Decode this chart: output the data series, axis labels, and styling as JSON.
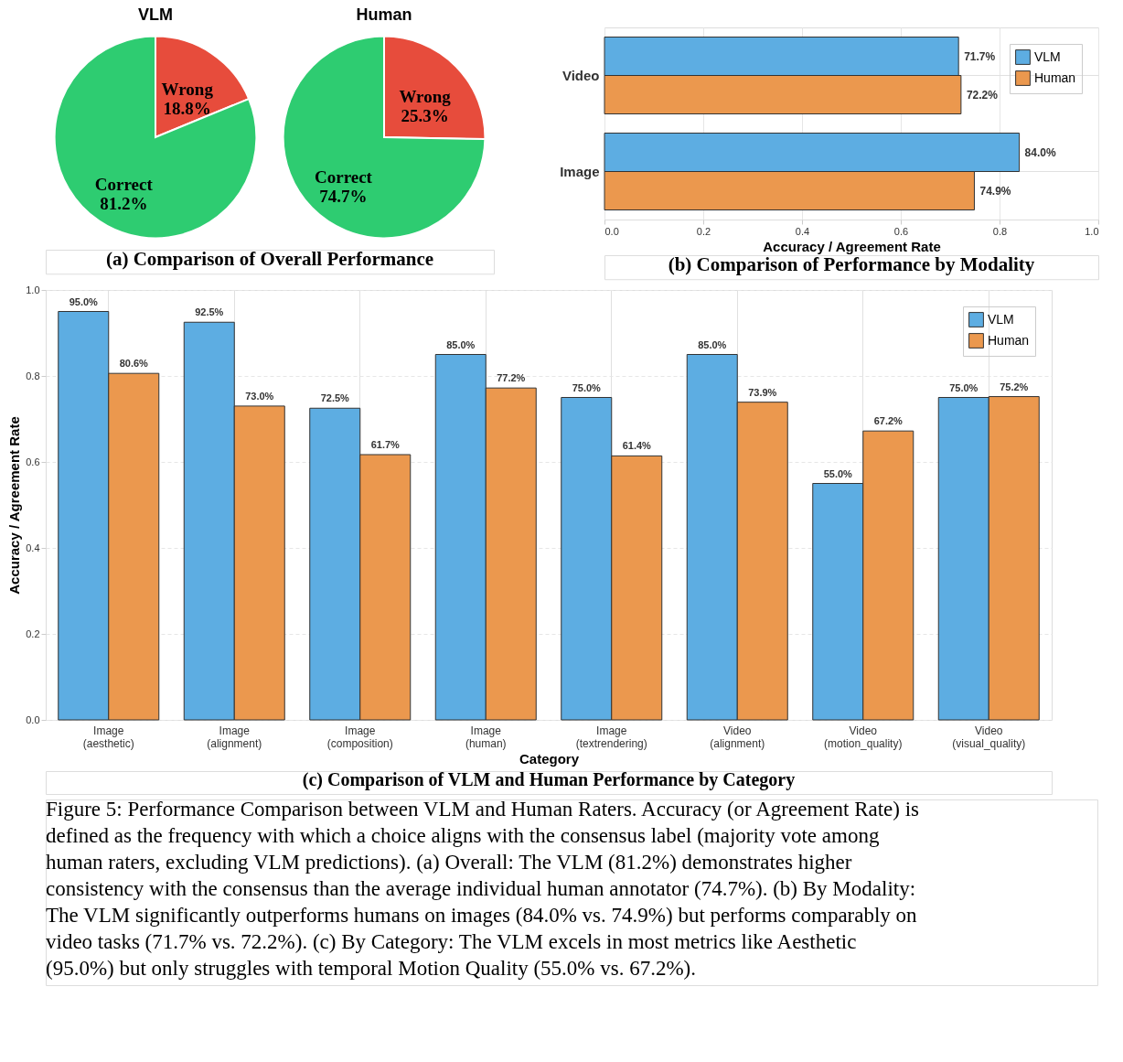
{
  "chart_data": [
    {
      "type": "pie",
      "title": "VLM",
      "categories": [
        "Wrong",
        "Correct"
      ],
      "values": [
        18.8,
        81.2
      ],
      "colors": [
        "#e74c3c",
        "#2ecc71"
      ],
      "value_labels": [
        "18.8%",
        "81.2%"
      ],
      "annotations": [
        "(a) Comparison of Overall Performance"
      ]
    },
    {
      "type": "pie",
      "title": "Human",
      "categories": [
        "Wrong",
        "Correct"
      ],
      "values": [
        25.3,
        74.7
      ],
      "colors": [
        "#e74c3c",
        "#2ecc71"
      ],
      "value_labels": [
        "25.3%",
        "74.7%"
      ]
    },
    {
      "type": "bar",
      "orientation": "horizontal",
      "categories": [
        "Video",
        "Image"
      ],
      "xlabel": "Accuracy / Agreement Rate",
      "series": [
        {
          "name": "VLM",
          "color": "#5dade2",
          "values": [
            0.717,
            0.84
          ],
          "value_labels": [
            "71.7%",
            "84.0%"
          ]
        },
        {
          "name": "Human",
          "color": "#eb984e",
          "values": [
            0.722,
            0.749
          ],
          "value_labels": [
            "72.2%",
            "74.9%"
          ]
        }
      ],
      "xlim": [
        0,
        1
      ],
      "xticks": [
        {
          "value": 0,
          "label": "0.0"
        },
        {
          "value": 0.2,
          "label": "0.2"
        },
        {
          "value": 0.4,
          "label": "0.4"
        },
        {
          "value": 0.6,
          "label": "0.6"
        },
        {
          "value": 0.8,
          "label": "0.8"
        },
        {
          "value": 1,
          "label": "1.0"
        }
      ],
      "grid": true,
      "legend": "top right",
      "annotations": [
        "(b) Comparison of Performance by Modality"
      ]
    },
    {
      "type": "bar",
      "categories": [
        "Image\n(aesthetic)",
        "Image\n(alignment)",
        "Image\n(composition)",
        "Image\n(human)",
        "Image\n(textrendering)",
        "Video\n(alignment)",
        "Video\n(motion_quality)",
        "Video\n(visual_quality)"
      ],
      "xlabel": "Category",
      "ylabel": "Accuracy / Agreement Rate",
      "series": [
        {
          "name": "VLM",
          "color": "#5dade2",
          "values": [
            0.95,
            0.925,
            0.725,
            0.85,
            0.75,
            0.85,
            0.55,
            0.75
          ],
          "value_labels": [
            "95.0%",
            "92.5%",
            "72.5%",
            "85.0%",
            "75.0%",
            "85.0%",
            "55.0%",
            "75.0%"
          ]
        },
        {
          "name": "Human",
          "color": "#eb984e",
          "values": [
            0.806,
            0.73,
            0.617,
            0.772,
            0.614,
            0.739,
            0.672,
            0.752
          ],
          "value_labels": [
            "80.6%",
            "73.0%",
            "61.7%",
            "77.2%",
            "61.4%",
            "73.9%",
            "67.2%",
            "75.2%"
          ]
        }
      ],
      "ylim": [
        0,
        1
      ],
      "yticks": [
        {
          "value": 0,
          "label": "0.0"
        },
        {
          "value": 0.2,
          "label": "0.2"
        },
        {
          "value": 0.4,
          "label": "0.4"
        },
        {
          "value": 0.6,
          "label": "0.6"
        },
        {
          "value": 0.8,
          "label": "0.8"
        },
        {
          "value": 1,
          "label": "1.0"
        }
      ],
      "grid": true,
      "legend": "top right",
      "annotations": [
        "(c) Comparison of VLM and Human Performance by Category",
        "Figure 5: Performance Comparison between VLM and Human Raters. Accuracy (or Agreement Rate) is defined as the frequency with which a choice aligns with the consensus label (majority vote among human raters, excluding VLM predictions). (a) Overall: The VLM (81.2%) demonstrates higher consistency with the consensus than the average individual human annotator (74.7%). (b) By Modality: The VLM significantly outperforms humans on images (84.0% vs. 74.9%) but performs comparably on video tasks (71.7% vs. 72.2%). (c) By Category: The VLM excels in most metrics like Aesthetic (95.0%) but only struggles with temporal Motion Quality (55.0% vs. 67.2%)."
      ]
    }
  ]
}
